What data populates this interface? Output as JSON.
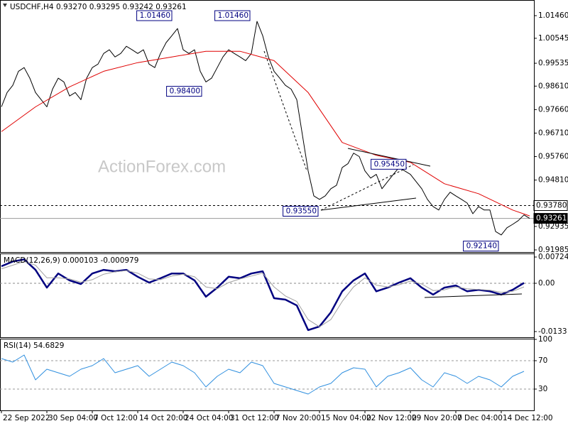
{
  "chart_data": [
    {
      "type": "line",
      "title": "USDCHF,H4 0.93270 0.93295 0.93242 0.93261",
      "watermark": "ActionForex.com",
      "xlim": [
        -0.25,
        93.75
      ],
      "ylim": [
        0.91899,
        1.02093
      ],
      "yticks": [
        {
          "value": 1.0146,
          "label": "1.01460"
        },
        {
          "value": 1.00545,
          "label": "1.00545"
        },
        {
          "value": 0.99535,
          "label": "0.99535"
        },
        {
          "value": 0.9861,
          "label": "0.98610"
        },
        {
          "value": 0.9766,
          "label": "0.97660"
        },
        {
          "value": 0.9671,
          "label": "0.96710"
        },
        {
          "value": 0.9576,
          "label": "0.95760"
        },
        {
          "value": 0.9481,
          "label": "0.94810"
        },
        {
          "value": 0.92935,
          "label": "0.92935"
        },
        {
          "value": 0.91985,
          "label": "0.91985"
        }
      ],
      "series": [
        {
          "color": "#000000",
          "values": [
            0.9777,
            0.9835,
            0.9864,
            0.9921,
            0.9936,
            0.9893,
            0.9835,
            0.9806,
            0.9777,
            0.9849,
            0.9893,
            0.9878,
            0.9821,
            0.9835,
            0.9806,
            0.9893,
            0.9936,
            0.995,
            0.9993,
            1.0008,
            0.9979,
            0.9993,
            1.0022,
            1.0008,
            0.9993,
            1.0008,
            0.995,
            0.9936,
            0.9993,
            1.0037,
            1.0065,
            1.0094,
            1.0008,
            0.9993,
            1.0008,
            0.9921,
            0.9878,
            0.9893,
            0.9936,
            0.9979,
            1.0008,
            0.9993,
            0.9979,
            0.9964,
            0.9993,
            1.0123,
            1.0065,
            0.9979,
            0.9921,
            0.9893,
            0.9864,
            0.9849,
            0.9806,
            0.9662,
            0.9518,
            0.9417,
            0.9403,
            0.9417,
            0.9446,
            0.946,
            0.9532,
            0.9547,
            0.959,
            0.9576,
            0.9518,
            0.9489,
            0.9504,
            0.9446,
            0.9475,
            0.9504,
            0.9532,
            0.9518,
            0.9504,
            0.9475,
            0.9446,
            0.9403,
            0.9374,
            0.936,
            0.9403,
            0.9432,
            0.9417,
            0.9403,
            0.9388,
            0.9345,
            0.9374,
            0.936,
            0.936,
            0.9273,
            0.9259,
            0.9288,
            0.9302,
            0.9317,
            0.934,
            0.9326
          ]
        },
        {
          "color": "#e00000",
          "x": [
            0,
            6,
            12,
            18,
            24,
            30,
            36,
            42,
            48,
            54,
            60,
            66,
            72,
            78,
            84,
            90,
            93
          ],
          "values": [
            0.9677,
            0.9777,
            0.9858,
            0.9921,
            0.9956,
            0.9979,
            1.0002,
            1.0002,
            0.9964,
            0.9835,
            0.9633,
            0.9581,
            0.9553,
            0.9466,
            0.9426,
            0.936,
            0.9336
          ]
        }
      ],
      "annotations": [
        {
          "label": "1.01460",
          "x": 30,
          "value": 1.0146
        },
        {
          "label": "1.01460",
          "x": 43.75,
          "value": 1.0146
        },
        {
          "label": "0.98400",
          "x": 35.25,
          "value": 0.984
        },
        {
          "label": "0.95450",
          "x": 71.25,
          "value": 0.9545
        },
        {
          "label": "0.93550",
          "x": 55.75,
          "value": 0.9355
        },
        {
          "label": "0.92140",
          "x": 87.5,
          "value": 0.9214
        }
      ],
      "hlines": [
        {
          "value": 0.9378,
          "label": "0.93780",
          "style": "dashed"
        },
        {
          "value": 0.93261,
          "label": "0.93261",
          "style": "solid"
        }
      ]
    },
    {
      "type": "line",
      "title": "MACD(12,26,9) 0.000103 -0.000979",
      "xlim": [
        -0.25,
        93.75
      ],
      "ylim": [
        -0.01487,
        0.00822
      ],
      "yticks": [
        {
          "value": 0.00724,
          "label": "0.00724"
        },
        {
          "value": 0,
          "label": "0.00"
        },
        {
          "value": -0.0133,
          "label": "-0.0133"
        }
      ],
      "zero_line": true,
      "series": [
        {
          "color": "#000080",
          "width": 2.5,
          "x": [
            0,
            2,
            4,
            6,
            8,
            10,
            12,
            14,
            16,
            18,
            20,
            22,
            24,
            26,
            28,
            30,
            32,
            34,
            36,
            38,
            40,
            42,
            44,
            46,
            48,
            50,
            52,
            54,
            56,
            58,
            60,
            62,
            64,
            66,
            68,
            70,
            72,
            74,
            76,
            78,
            80,
            82,
            84,
            86,
            88,
            90,
            92
          ],
          "values": [
            0.0047,
            0.006,
            0.0066,
            0.0037,
            -0.0012,
            0.0027,
            0.0008,
            -0.0002,
            0.0027,
            0.0037,
            0.0033,
            0.0037,
            0.0018,
            0.0002,
            0.0014,
            0.0027,
            0.0027,
            0.0008,
            -0.0037,
            -0.0012,
            0.0018,
            0.0014,
            0.0027,
            0.0033,
            -0.0041,
            -0.0045,
            -0.0061,
            -0.0129,
            -0.0119,
            -0.008,
            -0.0022,
            0.0008,
            0.0027,
            -0.0022,
            -0.0012,
            0.0002,
            0.0014,
            -0.0012,
            -0.0031,
            -0.0012,
            -0.0006,
            -0.0022,
            -0.0018,
            -0.0022,
            -0.0031,
            -0.0018,
            0.0001
          ]
        },
        {
          "color": "#a0a0a0",
          "width": 1,
          "x": [
            0,
            2,
            4,
            6,
            8,
            10,
            12,
            14,
            16,
            18,
            20,
            22,
            24,
            26,
            28,
            30,
            32,
            34,
            36,
            38,
            40,
            42,
            44,
            46,
            48,
            50,
            52,
            54,
            56,
            58,
            60,
            62,
            64,
            66,
            68,
            70,
            72,
            74,
            76,
            78,
            80,
            82,
            84,
            86,
            88,
            90,
            92
          ],
          "values": [
            0.004,
            0.005,
            0.006,
            0.005,
            0.0015,
            0.0015,
            0.0012,
            0.0003,
            0.001,
            0.0025,
            0.0032,
            0.0035,
            0.0028,
            0.0012,
            0.001,
            0.002,
            0.0025,
            0.0018,
            -0.001,
            -0.0015,
            0.0002,
            0.0012,
            0.002,
            0.0028,
            -0.001,
            -0.0035,
            -0.005,
            -0.01,
            -0.012,
            -0.01,
            -0.005,
            -0.001,
            0.0015,
            -0.0005,
            -0.001,
            -0.0004,
            0.0006,
            -0.0002,
            -0.002,
            -0.0018,
            -0.001,
            -0.0015,
            -0.0017,
            -0.0019,
            -0.0025,
            -0.0022,
            -0.001
          ]
        }
      ]
    },
    {
      "type": "line",
      "title": "RSI(14) 54.6829",
      "xlim": [
        -0.25,
        93.75
      ],
      "ylim": [
        0,
        101
      ],
      "yticks": [
        100,
        70,
        30
      ],
      "levels": [
        70,
        30
      ],
      "xticks": [
        {
          "value": 0,
          "label": "22 Sep 2022"
        },
        {
          "value": 8,
          "label": "30 Sep 04:00"
        },
        {
          "value": 16,
          "label": "7 Oct 12:00"
        },
        {
          "value": 24,
          "label": "14 Oct 20:00"
        },
        {
          "value": 32,
          "label": "24 Oct 04:00"
        },
        {
          "value": 40,
          "label": "31 Oct 12:00"
        },
        {
          "value": 48,
          "label": "7 Nov 20:00"
        },
        {
          "value": 56,
          "label": "15 Nov 04:00"
        },
        {
          "value": 64,
          "label": "22 Nov 12:00"
        },
        {
          "value": 72,
          "label": "29 Nov 20:00"
        },
        {
          "value": 80,
          "label": "7 Dec 04:00"
        },
        {
          "value": 88,
          "label": "14 Dec 12:00"
        }
      ],
      "series": [
        {
          "color": "#2f8fdf",
          "width": 1,
          "x": [
            0,
            2,
            4,
            6,
            8,
            10,
            12,
            14,
            16,
            18,
            20,
            22,
            24,
            26,
            28,
            30,
            32,
            34,
            36,
            38,
            40,
            42,
            44,
            46,
            48,
            50,
            52,
            54,
            56,
            58,
            60,
            62,
            64,
            66,
            68,
            70,
            72,
            74,
            76,
            78,
            80,
            82,
            84,
            86,
            88,
            90,
            92
          ],
          "values": [
            73,
            68,
            78,
            43,
            58,
            53,
            48,
            58,
            63,
            73,
            53,
            58,
            63,
            48,
            58,
            68,
            63,
            53,
            33,
            48,
            58,
            53,
            68,
            63,
            38,
            33,
            28,
            23,
            33,
            38,
            53,
            60,
            58,
            33,
            48,
            53,
            60,
            43,
            33,
            53,
            48,
            38,
            48,
            43,
            33,
            48,
            55
          ]
        }
      ]
    }
  ]
}
